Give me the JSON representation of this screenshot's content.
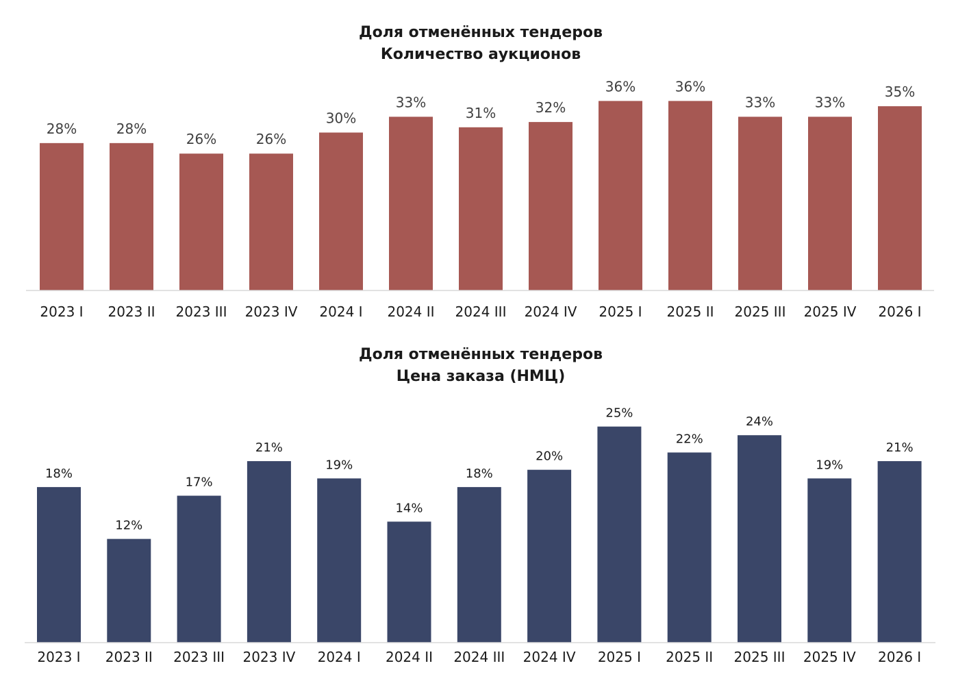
{
  "chart_data": [
    {
      "type": "bar",
      "title": "Доля отменённых тендеров",
      "subtitle": "Количество аукционов",
      "categories": [
        "2023 I",
        "2023 II",
        "2023 III",
        "2023 IV",
        "2024 I",
        "2024 II",
        "2024 III",
        "2024 IV",
        "2025 I",
        "2025 II",
        "2025 III",
        "2025 IV",
        "2026 I"
      ],
      "series": [
        {
          "values": [
            28,
            28,
            26,
            26,
            30,
            33,
            31,
            32,
            36,
            36,
            33,
            33,
            35
          ]
        }
      ],
      "data_labels": [
        "28%",
        "28%",
        "26%",
        "26%",
        "30%",
        "33%",
        "31%",
        "32%",
        "36%",
        "36%",
        "33%",
        "33%",
        "35%"
      ],
      "xlabel": "",
      "ylabel": "",
      "ylim": [
        0,
        38
      ],
      "grid": false,
      "color": "#a65853"
    },
    {
      "type": "bar",
      "title": "Доля отменённых тендеров",
      "subtitle": "Цена заказа (НМЦ)",
      "categories": [
        "2023 I",
        "2023 II",
        "2023 III",
        "2023 IV",
        "2024 I",
        "2024 II",
        "2024 III",
        "2024 IV",
        "2025 I",
        "2025 II",
        "2025 III",
        "2025 IV",
        "2026 I"
      ],
      "series": [
        {
          "values": [
            18,
            12,
            17,
            21,
            19,
            14,
            18,
            20,
            25,
            22,
            24,
            19,
            21
          ]
        }
      ],
      "data_labels": [
        "18%",
        "12%",
        "17%",
        "21%",
        "19%",
        "14%",
        "18%",
        "20%",
        "25%",
        "22%",
        "24%",
        "19%",
        "21%"
      ],
      "xlabel": "",
      "ylabel": "",
      "ylim": [
        0,
        26
      ],
      "grid": false,
      "color": "#3a4668"
    }
  ]
}
